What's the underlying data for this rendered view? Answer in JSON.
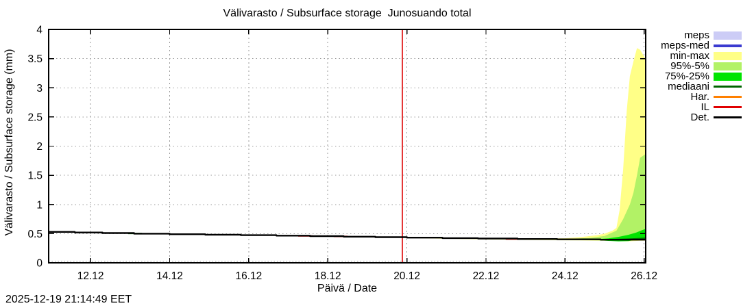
{
  "timestamp": "2025-12-19 21:14:49 EET",
  "legend": {
    "items": [
      {
        "label": "meps",
        "type": "band",
        "color": "#ccccf6"
      },
      {
        "label": "meps-med",
        "type": "line",
        "color": "#3b3bd0"
      },
      {
        "label": "min-max",
        "type": "band",
        "color": "#ffff87"
      },
      {
        "label": "95%-5%",
        "type": "band",
        "color": "#b2f266"
      },
      {
        "label": "75%-25%",
        "type": "band",
        "color": "#00e400"
      },
      {
        "label": "mediaani",
        "type": "line",
        "color": "#006400"
      },
      {
        "label": "Har.",
        "type": "line",
        "color": "#ff8000"
      },
      {
        "label": "IL",
        "type": "line",
        "color": "#e00000"
      },
      {
        "label": "Det.",
        "type": "line",
        "color": "#000000"
      }
    ]
  },
  "chart_data": {
    "type": "area",
    "title": "Välivarasto / Subsurface storage  Junosuando total",
    "xlabel": "Päivä / Date",
    "ylabel": "Välivarasto / Subsurface storage (mm)",
    "xlim": [
      10.94,
      26.04
    ],
    "ylim": [
      0,
      4
    ],
    "grid": true,
    "xticks": [
      {
        "x": 12,
        "label": "12.12"
      },
      {
        "x": 14,
        "label": "14.12"
      },
      {
        "x": 16,
        "label": "16.12"
      },
      {
        "x": 18,
        "label": "18.12"
      },
      {
        "x": 20,
        "label": "20.12"
      },
      {
        "x": 22,
        "label": "22.12"
      },
      {
        "x": 24,
        "label": "24.12"
      },
      {
        "x": 26,
        "label": "26.12"
      }
    ],
    "yticks": [
      {
        "y": 0,
        "label": "0"
      },
      {
        "y": 0.5,
        "label": "0.5"
      },
      {
        "y": 1,
        "label": "1"
      },
      {
        "y": 1.5,
        "label": "1.5"
      },
      {
        "y": 2,
        "label": "2"
      },
      {
        "y": 2.5,
        "label": "2.5"
      },
      {
        "y": 3,
        "label": "3"
      },
      {
        "y": 3.5,
        "label": "3.5"
      },
      {
        "y": 4,
        "label": "4"
      }
    ],
    "now_line": {
      "x": 19.885,
      "color": "#dd0000"
    },
    "bands": [
      {
        "name": "min-max",
        "color": "#ffff87",
        "x": [
          19.885,
          20.5,
          21,
          22,
          23,
          24,
          24.4,
          24.8,
          25.0,
          25.2,
          25.3,
          25.38,
          25.47,
          25.56,
          25.64,
          25.73,
          25.82,
          25.9,
          26.03
        ],
        "hi": [
          0.436,
          0.433,
          0.431,
          0.426,
          0.416,
          0.421,
          0.441,
          0.471,
          0.5,
          0.55,
          0.6,
          0.9,
          1.6,
          2.6,
          3.2,
          3.45,
          3.68,
          3.65,
          3.5
        ],
        "lo": [
          0.428,
          0.42,
          0.412,
          0.402,
          0.392,
          0.386,
          0.383,
          0.38,
          0.378,
          0.376,
          0.374,
          0.372,
          0.37,
          0.37,
          0.37,
          0.372,
          0.375,
          0.378,
          0.38
        ]
      },
      {
        "name": "95%-5%",
        "color": "#b2f266",
        "x": [
          19.885,
          21,
          22,
          23,
          24,
          24.6,
          25.0,
          25.3,
          25.47,
          25.64,
          25.73,
          25.82,
          25.9,
          26.03
        ],
        "hi": [
          0.434,
          0.429,
          0.421,
          0.413,
          0.411,
          0.426,
          0.46,
          0.55,
          0.75,
          1.0,
          1.2,
          1.5,
          1.8,
          1.86
        ],
        "lo": [
          0.43,
          0.422,
          0.413,
          0.4,
          0.39,
          0.387,
          0.385,
          0.382,
          0.38,
          0.38,
          0.382,
          0.385,
          0.388,
          0.39
        ]
      },
      {
        "name": "75%-25%",
        "color": "#00e400",
        "x": [
          19.885,
          21,
          22,
          23,
          24,
          24.8,
          25.1,
          25.35,
          25.6,
          25.8,
          25.95,
          26.03
        ],
        "hi": [
          0.432,
          0.426,
          0.417,
          0.408,
          0.405,
          0.408,
          0.42,
          0.445,
          0.48,
          0.52,
          0.56,
          0.58
        ],
        "lo": [
          0.43,
          0.422,
          0.413,
          0.402,
          0.396,
          0.39,
          0.375,
          0.368,
          0.372,
          0.395,
          0.415,
          0.425
        ]
      }
    ],
    "lines": [
      {
        "name": "mediaani",
        "color": "#006400",
        "width": 2,
        "step": false,
        "x": [
          12.95,
          13.3,
          null,
          24.9,
          25.3,
          25.6,
          25.9,
          26.03
        ],
        "y": [
          0.503,
          0.503,
          null,
          0.396,
          0.4,
          0.406,
          0.415,
          0.421
        ]
      },
      {
        "name": "IL",
        "color": "#e00000",
        "width": 2,
        "step": false,
        "x": [
          17.25,
          17.62,
          null,
          18.15,
          18.5,
          null,
          22.5,
          22.85
        ],
        "y": [
          0.4615,
          0.4615,
          null,
          0.4525,
          0.4525,
          null,
          0.4065,
          0.4065
        ]
      },
      {
        "name": "Det.",
        "color": "#000000",
        "width": 2.4,
        "step": true,
        "x": [
          10.94,
          11.6,
          12.3,
          13.1,
          14.0,
          14.9,
          15.8,
          16.7,
          17.55,
          18.4,
          19.2,
          20.0,
          20.9,
          21.8,
          22.8,
          23.8,
          24.9,
          26.03
        ],
        "y": [
          0.53,
          0.52,
          0.51,
          0.5,
          0.49,
          0.482,
          0.474,
          0.466,
          0.457,
          0.448,
          0.44,
          0.432,
          0.424,
          0.416,
          0.408,
          0.402,
          0.396,
          0.391
        ]
      }
    ]
  }
}
